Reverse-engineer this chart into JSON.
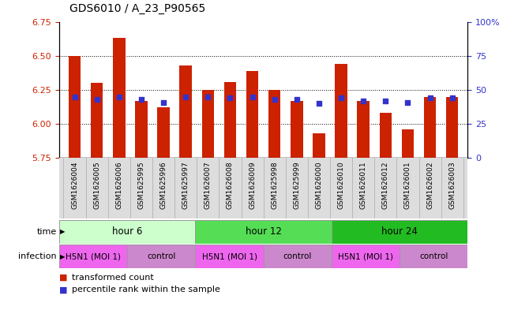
{
  "title": "GDS6010 / A_23_P90565",
  "samples": [
    "GSM1626004",
    "GSM1626005",
    "GSM1626006",
    "GSM1625995",
    "GSM1625996",
    "GSM1625997",
    "GSM1626007",
    "GSM1626008",
    "GSM1626009",
    "GSM1625998",
    "GSM1625999",
    "GSM1626000",
    "GSM1626010",
    "GSM1626011",
    "GSM1626012",
    "GSM1626001",
    "GSM1626002",
    "GSM1626003"
  ],
  "bar_values": [
    6.5,
    6.3,
    6.63,
    6.17,
    6.12,
    6.43,
    6.25,
    6.31,
    6.39,
    6.25,
    6.17,
    5.93,
    6.44,
    6.17,
    6.08,
    5.96,
    6.2,
    6.2
  ],
  "dot_values": [
    6.2,
    6.18,
    6.2,
    6.18,
    6.16,
    6.2,
    6.2,
    6.19,
    6.2,
    6.18,
    6.18,
    6.15,
    6.19,
    6.17,
    6.17,
    6.16,
    6.19,
    6.19
  ],
  "ylim_left": [
    5.75,
    6.75
  ],
  "ylim_right": [
    0,
    100
  ],
  "y_ticks_left": [
    5.75,
    6.0,
    6.25,
    6.5,
    6.75
  ],
  "y_ticks_right": [
    0,
    25,
    50,
    75,
    100
  ],
  "bar_color": "#cc2200",
  "dot_color": "#3333cc",
  "bar_bottom": 5.75,
  "time_groups": [
    {
      "label": "hour 6",
      "start": 0,
      "end": 6,
      "color": "#ccffcc"
    },
    {
      "label": "hour 12",
      "start": 6,
      "end": 12,
      "color": "#55dd55"
    },
    {
      "label": "hour 24",
      "start": 12,
      "end": 18,
      "color": "#22bb22"
    }
  ],
  "infection_groups": [
    {
      "label": "H5N1 (MOI 1)",
      "start": 0,
      "end": 3,
      "color": "#ee66ee"
    },
    {
      "label": "control",
      "start": 3,
      "end": 6,
      "color": "#cc88cc"
    },
    {
      "label": "H5N1 (MOI 1)",
      "start": 6,
      "end": 9,
      "color": "#ee66ee"
    },
    {
      "label": "control",
      "start": 9,
      "end": 12,
      "color": "#cc88cc"
    },
    {
      "label": "H5N1 (MOI 1)",
      "start": 12,
      "end": 15,
      "color": "#ee66ee"
    },
    {
      "label": "control",
      "start": 15,
      "end": 18,
      "color": "#cc88cc"
    }
  ],
  "time_label": "time",
  "infection_label": "infection",
  "legend_bar_label": "transformed count",
  "legend_dot_label": "percentile rank within the sample",
  "left_axis_color": "#cc2200",
  "right_axis_color": "#3333cc",
  "grid_color": "#000000",
  "background_color": "#ffffff",
  "plot_bg_color": "#ffffff",
  "sample_bg_color": "#dddddd"
}
